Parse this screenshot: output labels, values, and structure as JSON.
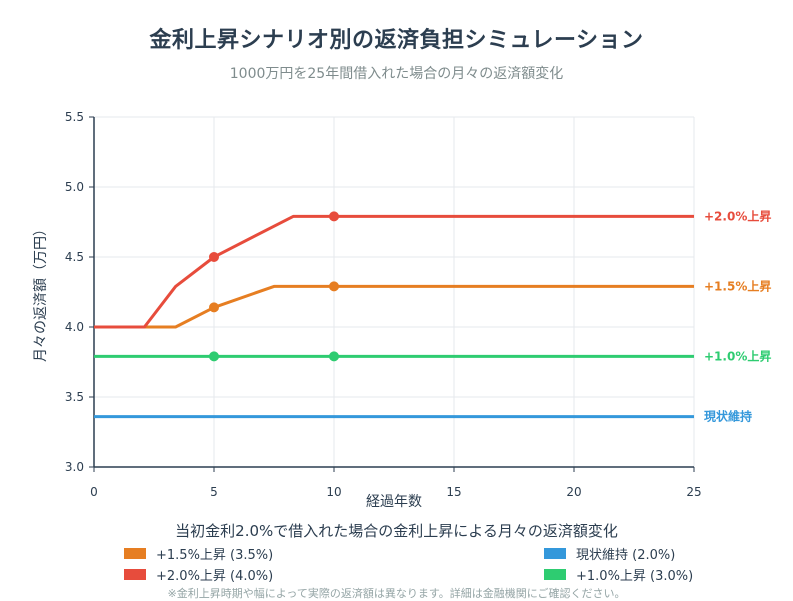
{
  "header": {
    "title": "金利上昇シナリオ別の返済負担シミュレーション",
    "subtitle": "1000万円を25年間借入れた場合の月々の返済額変化"
  },
  "caption": "当初金利2.0%で借入れた場合の金利上昇による月々の返済額変化",
  "note": "※金利上昇時期や幅によって実際の返済額は異なります。詳細は金融機関にご確認ください。",
  "chart_data": {
    "type": "line",
    "xlabel": "経過年数",
    "ylabel": "月々の返済額（万円）",
    "xlim": [
      0,
      25
    ],
    "ylim": [
      3.0,
      5.5
    ],
    "xticks": [
      0,
      5,
      10,
      15,
      20,
      25
    ],
    "yticks": [
      3.0,
      3.5,
      4.0,
      4.5,
      5.0,
      5.5
    ],
    "ytick_labels": [
      "3.0",
      "3.5",
      "4.0",
      "4.5",
      "5.0",
      "5.5"
    ],
    "grid": true,
    "series": [
      {
        "name": "現状維持 (2.0%)",
        "end_label": "現状維持",
        "color": "#3498db",
        "points": [
          [
            0,
            3.36
          ],
          [
            25,
            3.36
          ]
        ],
        "markers": []
      },
      {
        "name": "+1.0%上昇 (3.0%)",
        "end_label": "+1.0%上昇",
        "color": "#2ecc71",
        "points": [
          [
            0,
            3.79
          ],
          [
            25,
            3.79
          ]
        ],
        "markers": [
          [
            5,
            3.79
          ],
          [
            10,
            3.79
          ]
        ]
      },
      {
        "name": "+1.5%上昇 (3.5%)",
        "end_label": "+1.5%上昇",
        "color": "#e67e22",
        "points": [
          [
            0,
            4.0
          ],
          [
            3.4,
            4.0
          ],
          [
            5,
            4.14
          ],
          [
            7.5,
            4.29
          ],
          [
            25,
            4.29
          ]
        ],
        "markers": [
          [
            5,
            4.14
          ],
          [
            10,
            4.29
          ]
        ]
      },
      {
        "name": "+2.0%上昇 (4.0%)",
        "end_label": "+2.0%上昇",
        "color": "#e74c3c",
        "points": [
          [
            0,
            4.0
          ],
          [
            2.1,
            4.0
          ],
          [
            3.4,
            4.29
          ],
          [
            5,
            4.5
          ],
          [
            8.3,
            4.79
          ],
          [
            25,
            4.79
          ]
        ],
        "markers": [
          [
            5,
            4.5
          ],
          [
            10,
            4.79
          ]
        ]
      }
    ]
  },
  "legend": {
    "items": [
      {
        "label": "+1.5%上昇 (3.5%)",
        "color": "#e67e22"
      },
      {
        "label": "+2.0%上昇 (4.0%)",
        "color": "#e74c3c"
      },
      {
        "label": "現状維持 (2.0%)",
        "color": "#3498db"
      },
      {
        "label": "+1.0%上昇 (3.0%)",
        "color": "#2ecc71"
      }
    ]
  }
}
